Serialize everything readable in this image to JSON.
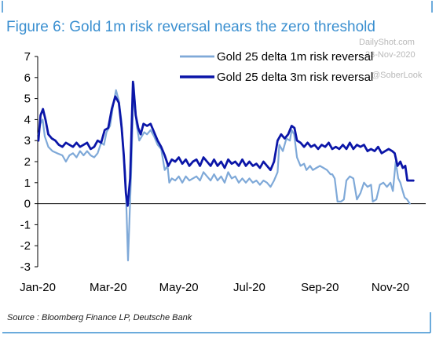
{
  "header": {
    "title": "Figure 6: Gold 1m risk reversal nears the zero threshold"
  },
  "watermark": {
    "site": "DailyShot.com",
    "date": "23-Nov-2020",
    "handle": "@SoberLook"
  },
  "source": {
    "text": "Source : Bloomberg Finance LP, Deutsche Bank"
  },
  "colors": {
    "title": "#3a8fd0",
    "frame": "#3a8fd0",
    "series_1m": "#7fa9d8",
    "series_3m": "#0b16a8"
  },
  "chart_data": {
    "type": "line",
    "title": "",
    "xlabel": "",
    "ylabel": "",
    "ylim": [
      -3,
      7
    ],
    "yticks": [
      "7",
      "6",
      "5",
      "4",
      "3",
      "2",
      "1",
      "0",
      "-1",
      "-2",
      "-3"
    ],
    "xlim": [
      0,
      11
    ],
    "xticks": [
      {
        "label": "Jan-20",
        "x": 0
      },
      {
        "label": "Mar-20",
        "x": 2
      },
      {
        "label": "May-20",
        "x": 4
      },
      {
        "label": "Jul-20",
        "x": 6
      },
      {
        "label": "Sep-20",
        "x": 8
      },
      {
        "label": "Nov-20",
        "x": 10
      }
    ],
    "grid": false,
    "legend": "top-right",
    "series": [
      {
        "name": "Gold 25 delta 1m risk reversal",
        "points": [
          [
            0.02,
            3.3
          ],
          [
            0.08,
            3.8
          ],
          [
            0.14,
            4.0
          ],
          [
            0.2,
            3.2
          ],
          [
            0.3,
            2.7
          ],
          [
            0.42,
            2.5
          ],
          [
            0.55,
            2.4
          ],
          [
            0.7,
            2.3
          ],
          [
            0.8,
            2.0
          ],
          [
            0.9,
            2.3
          ],
          [
            1.0,
            2.4
          ],
          [
            1.1,
            2.2
          ],
          [
            1.2,
            2.5
          ],
          [
            1.3,
            2.3
          ],
          [
            1.4,
            2.5
          ],
          [
            1.5,
            2.3
          ],
          [
            1.6,
            2.2
          ],
          [
            1.7,
            2.4
          ],
          [
            1.8,
            2.9
          ],
          [
            1.88,
            2.8
          ],
          [
            1.95,
            3.4
          ],
          [
            2.05,
            3.7
          ],
          [
            2.15,
            4.8
          ],
          [
            2.22,
            5.4
          ],
          [
            2.3,
            4.9
          ],
          [
            2.37,
            4.0
          ],
          [
            2.43,
            2.5
          ],
          [
            2.48,
            1.5
          ],
          [
            2.52,
            -0.5
          ],
          [
            2.56,
            -2.7
          ],
          [
            2.6,
            -0.8
          ],
          [
            2.65,
            1.5
          ],
          [
            2.72,
            5.7
          ],
          [
            2.8,
            3.8
          ],
          [
            2.88,
            3.0
          ],
          [
            2.95,
            3.2
          ],
          [
            3.02,
            3.4
          ],
          [
            3.1,
            3.3
          ],
          [
            3.2,
            3.5
          ],
          [
            3.3,
            3.2
          ],
          [
            3.4,
            2.8
          ],
          [
            3.5,
            2.6
          ],
          [
            3.6,
            1.6
          ],
          [
            3.68,
            1.8
          ],
          [
            3.73,
            1.0
          ],
          [
            3.8,
            1.2
          ],
          [
            3.9,
            1.1
          ],
          [
            4.0,
            1.3
          ],
          [
            4.1,
            1.0
          ],
          [
            4.2,
            1.3
          ],
          [
            4.3,
            1.1
          ],
          [
            4.4,
            1.2
          ],
          [
            4.5,
            1.3
          ],
          [
            4.6,
            1.1
          ],
          [
            4.7,
            1.5
          ],
          [
            4.8,
            1.3
          ],
          [
            4.9,
            1.1
          ],
          [
            5.0,
            1.4
          ],
          [
            5.1,
            1.1
          ],
          [
            5.2,
            1.3
          ],
          [
            5.3,
            1.0
          ],
          [
            5.4,
            1.5
          ],
          [
            5.5,
            1.2
          ],
          [
            5.6,
            1.3
          ],
          [
            5.7,
            1.0
          ],
          [
            5.8,
            1.2
          ],
          [
            5.9,
            1.0
          ],
          [
            6.0,
            1.2
          ],
          [
            6.1,
            1.0
          ],
          [
            6.2,
            1.1
          ],
          [
            6.3,
            0.9
          ],
          [
            6.4,
            1.1
          ],
          [
            6.5,
            1.0
          ],
          [
            6.6,
            0.8
          ],
          [
            6.7,
            1.1
          ],
          [
            6.8,
            1.5
          ],
          [
            6.85,
            2.8
          ],
          [
            6.95,
            2.5
          ],
          [
            7.05,
            3.1
          ],
          [
            7.15,
            3.0
          ],
          [
            7.2,
            3.5
          ],
          [
            7.27,
            3.3
          ],
          [
            7.35,
            2.2
          ],
          [
            7.45,
            1.8
          ],
          [
            7.55,
            1.9
          ],
          [
            7.62,
            1.6
          ],
          [
            7.72,
            1.8
          ],
          [
            7.8,
            1.6
          ],
          [
            7.9,
            1.7
          ],
          [
            8.0,
            1.8
          ],
          [
            8.1,
            1.7
          ],
          [
            8.2,
            1.6
          ],
          [
            8.3,
            1.4
          ],
          [
            8.35,
            1.4
          ],
          [
            8.42,
            1.2
          ],
          [
            8.5,
            0.1
          ],
          [
            8.6,
            0.1
          ],
          [
            8.68,
            0.2
          ],
          [
            8.75,
            1.1
          ],
          [
            8.85,
            1.3
          ],
          [
            8.95,
            1.2
          ],
          [
            9.05,
            0.2
          ],
          [
            9.15,
            0.5
          ],
          [
            9.25,
            1.0
          ],
          [
            9.35,
            0.8
          ],
          [
            9.45,
            0.9
          ],
          [
            9.5,
            0.1
          ],
          [
            9.6,
            0.2
          ],
          [
            9.7,
            0.9
          ],
          [
            9.8,
            1.0
          ],
          [
            9.9,
            0.8
          ],
          [
            10.0,
            1.0
          ],
          [
            10.07,
            0.6
          ],
          [
            10.15,
            2.0
          ],
          [
            10.22,
            1.2
          ],
          [
            10.28,
            1.0
          ],
          [
            10.33,
            0.7
          ],
          [
            10.4,
            0.3
          ],
          [
            10.47,
            0.2
          ],
          [
            10.55,
            0.0
          ]
        ]
      },
      {
        "name": "Gold 25 delta 3m risk reversal",
        "points": [
          [
            0.02,
            3.0
          ],
          [
            0.08,
            4.2
          ],
          [
            0.15,
            4.5
          ],
          [
            0.22,
            4.0
          ],
          [
            0.3,
            3.3
          ],
          [
            0.4,
            3.1
          ],
          [
            0.5,
            3.0
          ],
          [
            0.6,
            2.8
          ],
          [
            0.7,
            2.7
          ],
          [
            0.8,
            2.9
          ],
          [
            0.9,
            2.8
          ],
          [
            1.0,
            2.7
          ],
          [
            1.1,
            2.9
          ],
          [
            1.2,
            2.7
          ],
          [
            1.3,
            2.8
          ],
          [
            1.4,
            2.9
          ],
          [
            1.5,
            2.6
          ],
          [
            1.6,
            2.7
          ],
          [
            1.7,
            3.0
          ],
          [
            1.8,
            2.9
          ],
          [
            1.9,
            3.5
          ],
          [
            2.0,
            3.6
          ],
          [
            2.1,
            4.5
          ],
          [
            2.2,
            5.1
          ],
          [
            2.3,
            4.8
          ],
          [
            2.38,
            3.6
          ],
          [
            2.44,
            2.3
          ],
          [
            2.5,
            0.5
          ],
          [
            2.55,
            -0.1
          ],
          [
            2.62,
            1.2
          ],
          [
            2.7,
            5.8
          ],
          [
            2.78,
            4.2
          ],
          [
            2.85,
            3.6
          ],
          [
            2.92,
            3.3
          ],
          [
            3.0,
            3.8
          ],
          [
            3.1,
            3.7
          ],
          [
            3.2,
            3.8
          ],
          [
            3.3,
            3.4
          ],
          [
            3.4,
            3.0
          ],
          [
            3.5,
            2.7
          ],
          [
            3.6,
            2.3
          ],
          [
            3.7,
            1.8
          ],
          [
            3.8,
            2.1
          ],
          [
            3.9,
            2.0
          ],
          [
            4.0,
            2.2
          ],
          [
            4.1,
            1.9
          ],
          [
            4.2,
            2.1
          ],
          [
            4.3,
            1.8
          ],
          [
            4.4,
            2.0
          ],
          [
            4.5,
            2.1
          ],
          [
            4.6,
            1.8
          ],
          [
            4.7,
            2.2
          ],
          [
            4.8,
            2.0
          ],
          [
            4.9,
            1.8
          ],
          [
            5.0,
            2.1
          ],
          [
            5.1,
            1.8
          ],
          [
            5.2,
            2.0
          ],
          [
            5.3,
            1.7
          ],
          [
            5.4,
            2.1
          ],
          [
            5.5,
            1.9
          ],
          [
            5.6,
            2.0
          ],
          [
            5.7,
            1.8
          ],
          [
            5.8,
            2.1
          ],
          [
            5.9,
            1.8
          ],
          [
            6.0,
            2.0
          ],
          [
            6.1,
            1.8
          ],
          [
            6.2,
            1.9
          ],
          [
            6.3,
            1.7
          ],
          [
            6.4,
            2.0
          ],
          [
            6.5,
            1.8
          ],
          [
            6.6,
            1.6
          ],
          [
            6.7,
            2.0
          ],
          [
            6.8,
            3.0
          ],
          [
            6.9,
            3.3
          ],
          [
            7.0,
            3.1
          ],
          [
            7.1,
            3.3
          ],
          [
            7.2,
            3.7
          ],
          [
            7.28,
            3.6
          ],
          [
            7.35,
            3.0
          ],
          [
            7.45,
            2.9
          ],
          [
            7.55,
            2.7
          ],
          [
            7.65,
            2.9
          ],
          [
            7.75,
            2.7
          ],
          [
            7.85,
            2.8
          ],
          [
            7.95,
            2.6
          ],
          [
            8.05,
            2.8
          ],
          [
            8.15,
            2.7
          ],
          [
            8.25,
            2.9
          ],
          [
            8.35,
            2.6
          ],
          [
            8.45,
            2.7
          ],
          [
            8.55,
            2.6
          ],
          [
            8.65,
            2.8
          ],
          [
            8.75,
            2.6
          ],
          [
            8.85,
            2.9
          ],
          [
            8.95,
            2.6
          ],
          [
            9.05,
            2.8
          ],
          [
            9.15,
            2.7
          ],
          [
            9.25,
            2.8
          ],
          [
            9.35,
            2.5
          ],
          [
            9.45,
            2.6
          ],
          [
            9.55,
            2.5
          ],
          [
            9.65,
            2.7
          ],
          [
            9.75,
            2.4
          ],
          [
            9.85,
            2.5
          ],
          [
            9.95,
            2.6
          ],
          [
            10.05,
            2.5
          ],
          [
            10.12,
            2.4
          ],
          [
            10.2,
            1.8
          ],
          [
            10.28,
            2.0
          ],
          [
            10.35,
            1.7
          ],
          [
            10.42,
            1.8
          ],
          [
            10.48,
            1.1
          ],
          [
            10.55,
            1.1
          ],
          [
            10.65,
            1.1
          ]
        ]
      }
    ]
  }
}
